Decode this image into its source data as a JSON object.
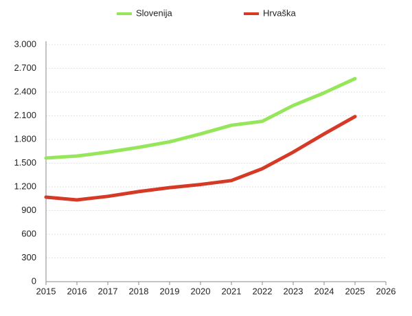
{
  "chart_data": {
    "type": "line",
    "x": [
      2015,
      2016,
      2017,
      2018,
      2019,
      2020,
      2021,
      2022,
      2023,
      2024,
      2025
    ],
    "series": [
      {
        "name": "Slovenija",
        "color": "#96e65c",
        "values": [
          1565,
          1590,
          1640,
          1700,
          1770,
          1870,
          1980,
          2030,
          2230,
          2390,
          2570
        ]
      },
      {
        "name": "Hrvaška",
        "color": "#d63a27",
        "values": [
          1070,
          1035,
          1080,
          1140,
          1190,
          1230,
          1280,
          1430,
          1640,
          1870,
          2090
        ]
      }
    ],
    "xlim": [
      2015,
      2026
    ],
    "xticks": [
      2015,
      2016,
      2017,
      2018,
      2019,
      2020,
      2021,
      2022,
      2023,
      2024,
      2025,
      2026
    ],
    "ylim": [
      0,
      3000
    ],
    "yticks": [
      0,
      300,
      600,
      900,
      {
        "value": 1200,
        "label": "1.200"
      },
      {
        "value": 1500,
        "label": "1.500"
      },
      {
        "value": 1800,
        "label": "1.800"
      },
      {
        "value": 2100,
        "label": "2.100"
      },
      {
        "value": 2400,
        "label": "2.400"
      },
      {
        "value": 2700,
        "label": "2.700"
      },
      {
        "value": 3000,
        "label": "3.000"
      }
    ],
    "grid": true,
    "legend": "top"
  }
}
